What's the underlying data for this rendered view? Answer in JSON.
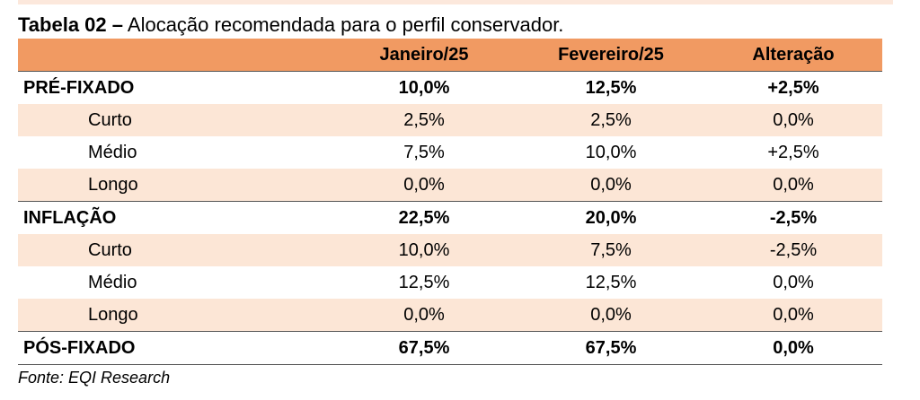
{
  "caption": {
    "label": "Tabela 02 –",
    "text": " Alocação recomendada para o perfil conservador."
  },
  "table": {
    "columns": [
      "",
      "Janeiro/25",
      "Fevereiro/25",
      "Alteração"
    ],
    "rows": [
      {
        "type": "group",
        "label": "PRÉ-FIXADO",
        "jan": "10,0%",
        "fev": "12,5%",
        "alt": "+2,5%"
      },
      {
        "type": "sub",
        "label": "Curto",
        "jan": "2,5%",
        "fev": "2,5%",
        "alt": "0,0%"
      },
      {
        "type": "sub",
        "label": "Médio",
        "jan": "7,5%",
        "fev": "10,0%",
        "alt": "+2,5%"
      },
      {
        "type": "sub",
        "label": "Longo",
        "jan": "0,0%",
        "fev": "0,0%",
        "alt": "0,0%"
      },
      {
        "type": "group",
        "label": "INFLAÇÃO",
        "jan": "22,5%",
        "fev": "20,0%",
        "alt": "-2,5%"
      },
      {
        "type": "sub",
        "label": "Curto",
        "jan": "10,0%",
        "fev": "7,5%",
        "alt": "-2,5%"
      },
      {
        "type": "sub",
        "label": "Médio",
        "jan": "12,5%",
        "fev": "12,5%",
        "alt": "0,0%"
      },
      {
        "type": "sub",
        "label": "Longo",
        "jan": "0,0%",
        "fev": "0,0%",
        "alt": "0,0%"
      },
      {
        "type": "group",
        "label": "PÓS-FIXADO",
        "jan": "67,5%",
        "fev": "67,5%",
        "alt": "0,0%"
      }
    ]
  },
  "source": "Fonte: EQI Research",
  "colors": {
    "header_bg": "#f19a62",
    "shaded_row_bg": "#fce6d6"
  }
}
